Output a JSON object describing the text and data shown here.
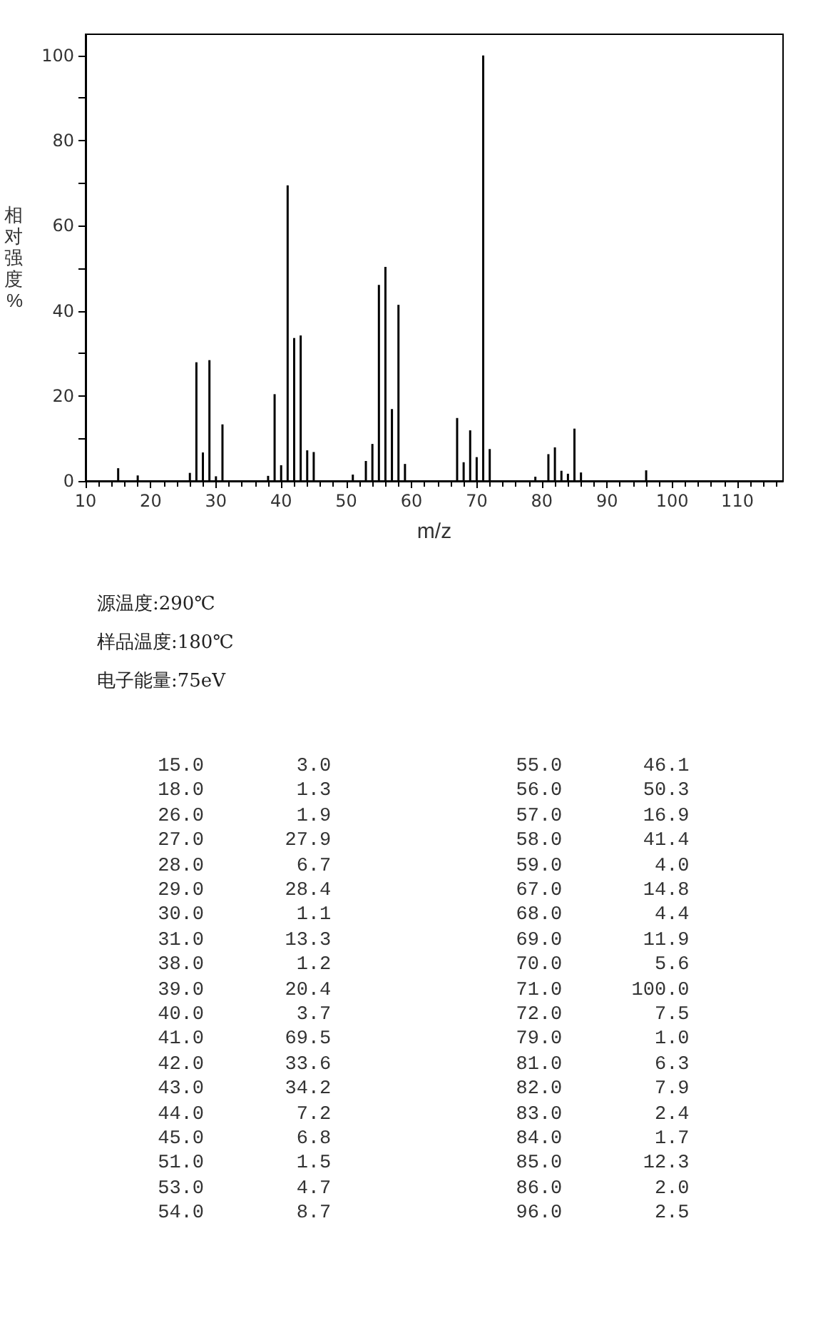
{
  "chart_data": [
    {
      "type": "bar",
      "xlabel": "m/z",
      "ylabel": "相对强度%",
      "x": [
        15,
        18,
        26,
        27,
        28,
        29,
        30,
        31,
        38,
        39,
        40,
        41,
        42,
        43,
        44,
        45,
        51,
        53,
        54,
        55,
        56,
        57,
        58,
        59,
        67,
        68,
        69,
        70,
        71,
        72,
        79,
        81,
        82,
        83,
        84,
        85,
        86,
        96
      ],
      "values": [
        3.0,
        1.3,
        1.9,
        27.9,
        6.7,
        28.4,
        1.1,
        13.3,
        1.2,
        20.4,
        3.7,
        69.5,
        33.6,
        34.2,
        7.2,
        6.8,
        1.5,
        4.7,
        8.7,
        46.1,
        50.3,
        16.9,
        41.4,
        4.0,
        14.8,
        4.4,
        11.9,
        5.6,
        100.0,
        7.5,
        1.0,
        6.3,
        7.9,
        2.4,
        1.7,
        12.3,
        2.0,
        2.5
      ],
      "color": "#000000",
      "xlim": [
        10,
        117
      ],
      "xticks": [
        10,
        20,
        30,
        40,
        50,
        60,
        70,
        80,
        90,
        100,
        110
      ],
      "ylim": [
        0,
        105
      ],
      "yticks": [
        0,
        {
          "value": 10,
          "label": null
        },
        20,
        {
          "value": 30,
          "label": null
        },
        40,
        {
          "value": 50,
          "label": null
        },
        60,
        {
          "value": 70,
          "label": null
        },
        80,
        {
          "value": 90,
          "label": null
        },
        100
      ],
      "grid": false,
      "annotations": [
        "源温度:290℃",
        "样品温度:180℃",
        "电子能量:75eV"
      ]
    },
    {
      "type": "other",
      "annotations": [
        "15.0 3.0 55.0 46.1",
        "18.0 1.3 56.0 50.3",
        "26.0 1.9 57.0 16.9",
        "27.0 27.9 58.0 41.4",
        "28.0 6.7 59.0 4.0",
        "29.0 28.4 67.0 14.8",
        "30.0 1.1 68.0 4.4",
        "31.0 13.3 69.0 11.9",
        "38.0 1.2 70.0 5.6",
        "39.0 20.4 71.0 100.0",
        "40.0 3.7 72.0 7.5",
        "41.0 69.5 79.0 1.0",
        "42.0 33.6 81.0 6.3",
        "43.0 34.2 82.0 7.9",
        "44.0 7.2 83.0 2.4",
        "45.0 6.8 84.0 1.7",
        "51.0 1.5 85.0 12.3",
        "53.0 4.7 86.0 2.0",
        "54.0 8.7 96.0 2.5"
      ]
    }
  ]
}
